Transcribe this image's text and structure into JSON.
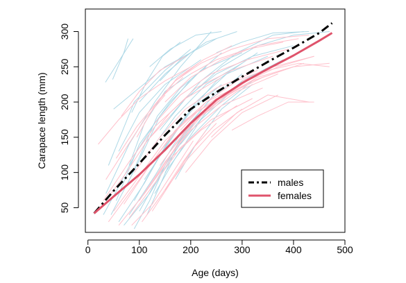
{
  "chart_data": {
    "type": "line",
    "title": "",
    "xlabel": "Age (days)",
    "ylabel": "Carapace length (mm)",
    "xlim": [
      -5,
      500
    ],
    "ylim": [
      15,
      332
    ],
    "x_ticks": [
      0,
      100,
      200,
      300,
      400,
      500
    ],
    "y_ticks": [
      50,
      100,
      150,
      200,
      250,
      300
    ],
    "grid": false,
    "legend": {
      "placement": "bottom-right",
      "entries": [
        {
          "name": "males",
          "color": "#000000",
          "style": "dashdot"
        },
        {
          "name": "females",
          "color": "#DF536B",
          "style": "solid"
        }
      ]
    },
    "series": [
      {
        "name": "males",
        "color": "#000000",
        "style": "dashdot",
        "x": [
          12,
          50,
          100,
          150,
          200,
          250,
          300,
          350,
          400,
          450,
          475
        ],
        "y": [
          42,
          74,
          113,
          153,
          190,
          214,
          236,
          257,
          277,
          298,
          312
        ]
      },
      {
        "name": "females",
        "color": "#DF536B",
        "style": "solid",
        "x": [
          12,
          50,
          100,
          150,
          200,
          250,
          300,
          350,
          400,
          450,
          475
        ],
        "y": [
          42,
          66,
          97,
          132,
          170,
          203,
          227,
          247,
          266,
          287,
          298
        ]
      }
    ],
    "individual_tracks": {
      "male_color": "#ADD8E6",
      "female_color": "#FFC0CB",
      "male_tracks": [
        [
          [
            34,
            228
          ],
          [
            62,
            260
          ],
          [
            88,
            290
          ]
        ],
        [
          [
            48,
            232
          ],
          [
            70,
            270
          ],
          [
            78,
            290
          ]
        ],
        [
          [
            40,
            110
          ],
          [
            90,
            200
          ],
          [
            150,
            245
          ],
          [
            200,
            275
          ]
        ],
        [
          [
            35,
            70
          ],
          [
            80,
            140
          ],
          [
            130,
            200
          ],
          [
            180,
            250
          ],
          [
            240,
            300
          ]
        ],
        [
          [
            45,
            40
          ],
          [
            95,
            110
          ],
          [
            140,
            180
          ],
          [
            200,
            232
          ],
          [
            260,
            270
          ]
        ],
        [
          [
            55,
            60
          ],
          [
            100,
            140
          ],
          [
            160,
            200
          ],
          [
            220,
            245
          ],
          [
            300,
            270
          ]
        ],
        [
          [
            60,
            30
          ],
          [
            110,
            85
          ],
          [
            160,
            150
          ],
          [
            210,
            195
          ],
          [
            260,
            225
          ]
        ],
        [
          [
            70,
            25
          ],
          [
            120,
            70
          ],
          [
            170,
            130
          ],
          [
            220,
            185
          ]
        ],
        [
          [
            80,
            40
          ],
          [
            130,
            95
          ],
          [
            180,
            155
          ],
          [
            240,
            205
          ],
          [
            300,
            240
          ]
        ],
        [
          [
            90,
            60
          ],
          [
            140,
            125
          ],
          [
            190,
            180
          ],
          [
            250,
            230
          ],
          [
            330,
            270
          ]
        ],
        [
          [
            100,
            45
          ],
          [
            150,
            110
          ],
          [
            200,
            170
          ],
          [
            250,
            215
          ]
        ],
        [
          [
            50,
            190
          ],
          [
            100,
            220
          ],
          [
            150,
            250
          ],
          [
            200,
            270
          ]
        ],
        [
          [
            60,
            130
          ],
          [
            100,
            185
          ],
          [
            150,
            225
          ],
          [
            220,
            260
          ]
        ],
        [
          [
            110,
            90
          ],
          [
            160,
            145
          ],
          [
            210,
            200
          ],
          [
            270,
            240
          ],
          [
            350,
            265
          ]
        ],
        [
          [
            120,
            130
          ],
          [
            170,
            180
          ],
          [
            230,
            225
          ],
          [
            300,
            255
          ]
        ],
        [
          [
            130,
            70
          ],
          [
            170,
            120
          ],
          [
            220,
            175
          ],
          [
            280,
            215
          ]
        ],
        [
          [
            140,
            160
          ],
          [
            190,
            205
          ],
          [
            250,
            240
          ],
          [
            320,
            265
          ],
          [
            400,
            280
          ]
        ],
        [
          [
            150,
            100
          ],
          [
            200,
            150
          ],
          [
            260,
            195
          ],
          [
            320,
            230
          ]
        ],
        [
          [
            80,
            110
          ],
          [
            110,
            170
          ],
          [
            150,
            215
          ],
          [
            200,
            240
          ]
        ],
        [
          [
            100,
            200
          ],
          [
            150,
            240
          ],
          [
            200,
            270
          ],
          [
            250,
            290
          ]
        ],
        [
          [
            120,
            250
          ],
          [
            160,
            275
          ],
          [
            210,
            295
          ],
          [
            260,
            300
          ]
        ],
        [
          [
            160,
            180
          ],
          [
            220,
            230
          ],
          [
            290,
            270
          ],
          [
            360,
            295
          ],
          [
            420,
            300
          ]
        ],
        [
          [
            180,
            140
          ],
          [
            230,
            185
          ],
          [
            300,
            230
          ],
          [
            380,
            260
          ]
        ],
        [
          [
            200,
            210
          ],
          [
            260,
            250
          ],
          [
            330,
            280
          ],
          [
            400,
            295
          ],
          [
            470,
            300
          ]
        ],
        [
          [
            90,
            20
          ],
          [
            120,
            60
          ],
          [
            150,
            110
          ],
          [
            190,
            160
          ]
        ],
        [
          [
            115,
            40
          ],
          [
            145,
            90
          ],
          [
            175,
            140
          ],
          [
            215,
            180
          ]
        ],
        [
          [
            30,
            40
          ],
          [
            60,
            80
          ],
          [
            95,
            130
          ],
          [
            130,
            170
          ]
        ],
        [
          [
            75,
            80
          ],
          [
            105,
            130
          ],
          [
            135,
            180
          ],
          [
            180,
            220
          ],
          [
            230,
            250
          ]
        ],
        [
          [
            140,
            230
          ],
          [
            180,
            260
          ],
          [
            230,
            285
          ],
          [
            290,
            300
          ]
        ],
        [
          [
            250,
            270
          ],
          [
            300,
            285
          ],
          [
            360,
            298
          ],
          [
            430,
            300
          ]
        ],
        [
          [
            170,
            90
          ],
          [
            210,
            140
          ],
          [
            260,
            190
          ],
          [
            320,
            225
          ]
        ],
        [
          [
            85,
            185
          ],
          [
            115,
            230
          ],
          [
            145,
            265
          ],
          [
            180,
            285
          ]
        ]
      ],
      "female_tracks": [
        [
          [
            20,
            140
          ],
          [
            60,
            175
          ],
          [
            100,
            205
          ],
          [
            150,
            230
          ],
          [
            200,
            250
          ]
        ],
        [
          [
            30,
            60
          ],
          [
            80,
            115
          ],
          [
            130,
            165
          ],
          [
            190,
            205
          ],
          [
            260,
            235
          ]
        ],
        [
          [
            40,
            30
          ],
          [
            90,
            80
          ],
          [
            140,
            130
          ],
          [
            190,
            175
          ],
          [
            250,
            205
          ]
        ],
        [
          [
            50,
            45
          ],
          [
            100,
            95
          ],
          [
            150,
            145
          ],
          [
            210,
            185
          ],
          [
            280,
            215
          ]
        ],
        [
          [
            60,
            25
          ],
          [
            110,
            70
          ],
          [
            160,
            120
          ],
          [
            220,
            160
          ],
          [
            290,
            195
          ]
        ],
        [
          [
            70,
            55
          ],
          [
            120,
            110
          ],
          [
            170,
            160
          ],
          [
            230,
            200
          ],
          [
            300,
            225
          ]
        ],
        [
          [
            80,
            35
          ],
          [
            130,
            85
          ],
          [
            180,
            135
          ],
          [
            240,
            175
          ],
          [
            320,
            205
          ]
        ],
        [
          [
            90,
            100
          ],
          [
            140,
            150
          ],
          [
            190,
            190
          ],
          [
            250,
            220
          ],
          [
            330,
            245
          ]
        ],
        [
          [
            100,
            60
          ],
          [
            150,
            115
          ],
          [
            200,
            160
          ],
          [
            260,
            195
          ],
          [
            340,
            220
          ]
        ],
        [
          [
            110,
            140
          ],
          [
            160,
            185
          ],
          [
            210,
            220
          ],
          [
            280,
            245
          ],
          [
            360,
            265
          ]
        ],
        [
          [
            120,
            80
          ],
          [
            170,
            135
          ],
          [
            220,
            180
          ],
          [
            290,
            215
          ],
          [
            370,
            240
          ]
        ],
        [
          [
            130,
            170
          ],
          [
            180,
            210
          ],
          [
            240,
            240
          ],
          [
            310,
            260
          ],
          [
            390,
            275
          ]
        ],
        [
          [
            140,
            110
          ],
          [
            190,
            160
          ],
          [
            250,
            200
          ],
          [
            320,
            230
          ],
          [
            400,
            250
          ]
        ],
        [
          [
            150,
            200
          ],
          [
            200,
            235
          ],
          [
            260,
            260
          ],
          [
            330,
            280
          ],
          [
            410,
            290
          ]
        ],
        [
          [
            160,
            130
          ],
          [
            210,
            175
          ],
          [
            270,
            210
          ],
          [
            340,
            235
          ],
          [
            420,
            255
          ]
        ],
        [
          [
            170,
            230
          ],
          [
            220,
            255
          ],
          [
            280,
            275
          ],
          [
            350,
            290
          ],
          [
            430,
            295
          ]
        ],
        [
          [
            180,
            160
          ],
          [
            230,
            200
          ],
          [
            290,
            230
          ],
          [
            360,
            250
          ],
          [
            440,
            265
          ]
        ],
        [
          [
            190,
            100
          ],
          [
            240,
            145
          ],
          [
            300,
            185
          ],
          [
            370,
            210
          ]
        ],
        [
          [
            200,
            240
          ],
          [
            250,
            260
          ],
          [
            310,
            275
          ],
          [
            380,
            285
          ]
        ],
        [
          [
            220,
            180
          ],
          [
            270,
            210
          ],
          [
            330,
            235
          ],
          [
            400,
            250
          ],
          [
            470,
            255
          ]
        ],
        [
          [
            240,
            150
          ],
          [
            290,
            185
          ],
          [
            350,
            210
          ],
          [
            430,
            200
          ]
        ],
        [
          [
            260,
            205
          ],
          [
            310,
            230
          ],
          [
            370,
            250
          ],
          [
            440,
            265
          ]
        ],
        [
          [
            280,
            160
          ],
          [
            330,
            180
          ],
          [
            390,
            200
          ],
          [
            440,
            200
          ]
        ],
        [
          [
            300,
            230
          ],
          [
            350,
            245
          ],
          [
            410,
            255
          ],
          [
            470,
            250
          ]
        ],
        [
          [
            35,
            90
          ],
          [
            70,
            130
          ],
          [
            110,
            175
          ],
          [
            150,
            210
          ]
        ],
        [
          [
            55,
            120
          ],
          [
            95,
            165
          ],
          [
            140,
            205
          ],
          [
            185,
            235
          ]
        ],
        [
          [
            65,
            180
          ],
          [
            100,
            215
          ],
          [
            140,
            245
          ],
          [
            190,
            265
          ]
        ],
        [
          [
            85,
            25
          ],
          [
            125,
            55
          ],
          [
            165,
            100
          ],
          [
            205,
            145
          ]
        ],
        [
          [
            105,
            30
          ],
          [
            145,
            70
          ],
          [
            185,
            115
          ],
          [
            230,
            160
          ]
        ],
        [
          [
            45,
            70
          ],
          [
            75,
            100
          ],
          [
            115,
            145
          ],
          [
            160,
            180
          ]
        ],
        [
          [
            125,
            45
          ],
          [
            165,
            90
          ],
          [
            205,
            135
          ],
          [
            250,
            170
          ]
        ],
        [
          [
            135,
            200
          ],
          [
            175,
            235
          ],
          [
            225,
            260
          ],
          [
            280,
            280
          ]
        ],
        [
          [
            95,
            150
          ],
          [
            130,
            195
          ],
          [
            170,
            230
          ],
          [
            215,
            255
          ]
        ],
        [
          [
            150,
            75
          ],
          [
            195,
            120
          ],
          [
            245,
            160
          ],
          [
            300,
            190
          ]
        ]
      ]
    }
  }
}
